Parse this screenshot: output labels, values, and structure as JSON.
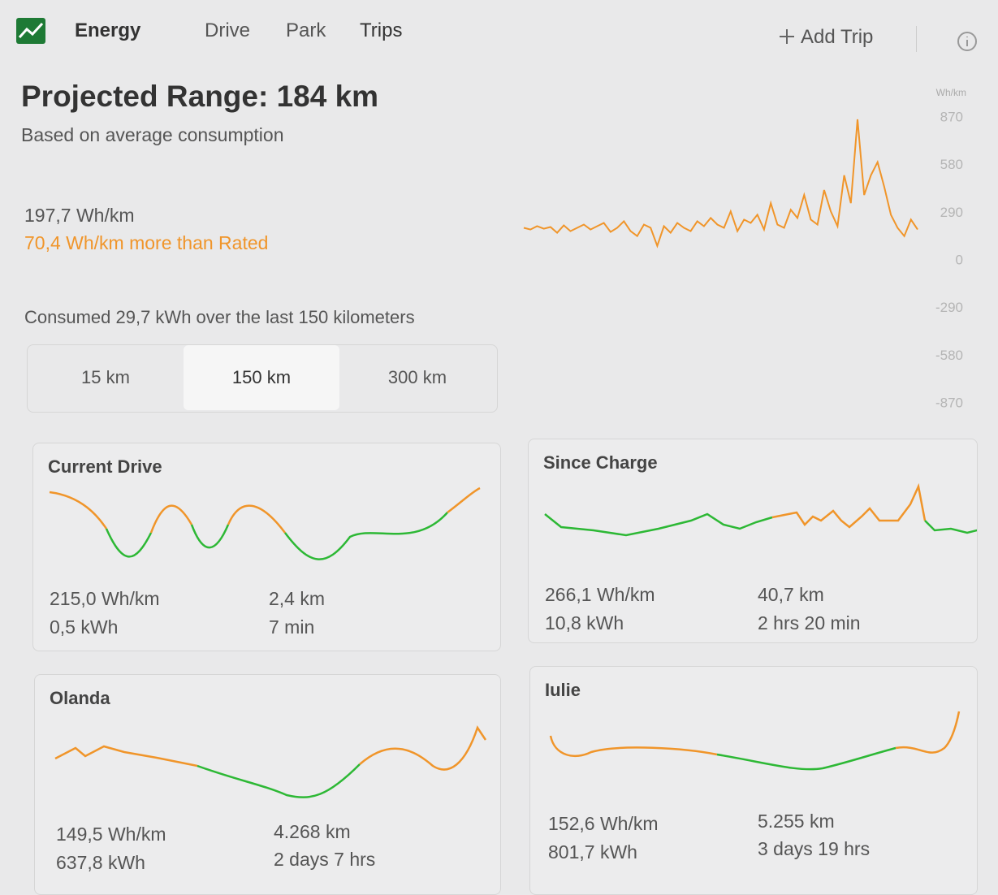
{
  "nav": {
    "tabs": [
      "Energy",
      "Drive",
      "Park",
      "Trips"
    ],
    "add_trip": "Add Trip"
  },
  "header": {
    "title": "Projected Range: 184 km",
    "subtitle": "Based on average consumption",
    "consumption": "197,7 Wh/km",
    "difference": "70,4 Wh/km more than Rated",
    "consumed": "Consumed 29,7 kWh over the last 150 kilometers"
  },
  "range_options": [
    "15 km",
    "150 km",
    "300 km"
  ],
  "selected_range": 1,
  "chart_data": {
    "type": "line",
    "y_axis_label": "Wh/km",
    "color": "#f0952a",
    "ylim": [
      -870,
      870
    ],
    "yticks": [
      870,
      580,
      290,
      0,
      -290,
      -580,
      -870
    ],
    "values": [
      200,
      190,
      210,
      195,
      205,
      170,
      215,
      180,
      200,
      220,
      190,
      210,
      230,
      175,
      200,
      240,
      180,
      150,
      220,
      200,
      90,
      210,
      170,
      230,
      200,
      180,
      240,
      210,
      260,
      220,
      200,
      300,
      180,
      250,
      230,
      280,
      190,
      350,
      220,
      200,
      310,
      260,
      400,
      250,
      220,
      430,
      300,
      210,
      520,
      350,
      860,
      400,
      520,
      600,
      450,
      280,
      200,
      150,
      250,
      190
    ]
  },
  "trips": [
    {
      "name": "Current Drive",
      "consumption": "215,0 Wh/km",
      "energy": "0,5 kWh",
      "distance": "2,4 km",
      "duration": "7 min"
    },
    {
      "name": "Since Charge",
      "consumption": "266,1 Wh/km",
      "energy": "10,8 kWh",
      "distance": "40,7 km",
      "duration": "2 hrs 20 min"
    },
    {
      "name": "Olanda",
      "consumption": "149,5 Wh/km",
      "energy": "637,8 kWh",
      "distance": "4.268 km",
      "duration": "2 days 7 hrs"
    },
    {
      "name": "Iulie",
      "consumption": "152,6 Wh/km",
      "energy": "801,7 kWh",
      "distance": "5.255 km",
      "duration": "3 days 19 hrs"
    }
  ]
}
